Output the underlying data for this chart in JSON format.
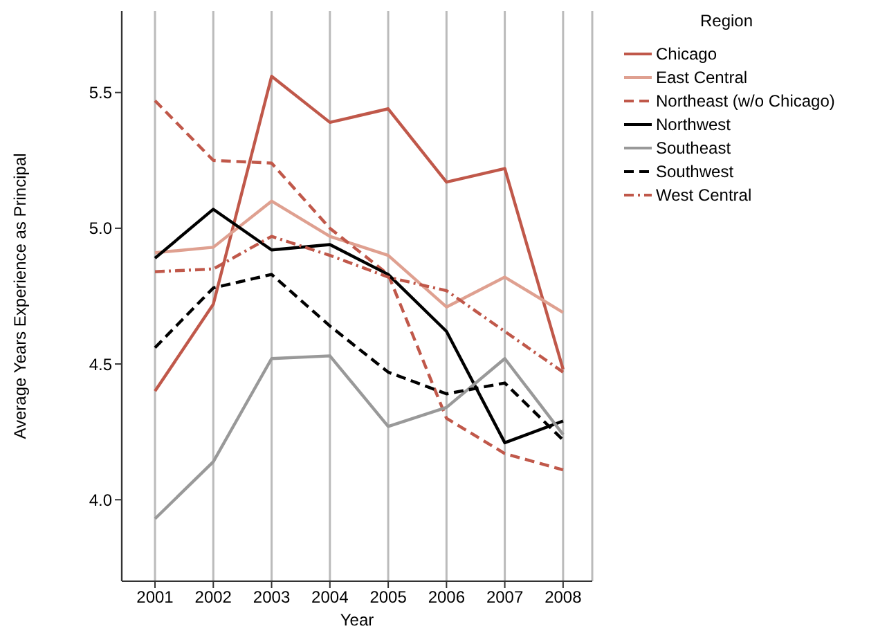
{
  "chart_data": {
    "type": "line",
    "xlabel": "Year",
    "ylabel": "Average Years Experience as Principal",
    "legend_title": "Region",
    "legend": "right",
    "grid": "x",
    "marker": "none",
    "categories": [
      "2001",
      "2002",
      "2003",
      "2004",
      "2005",
      "2006",
      "2007",
      "2008"
    ],
    "ylim": [
      3.7,
      5.8
    ],
    "yticks": [
      {
        "value": 4.0,
        "label": "4.0"
      },
      {
        "value": 4.5,
        "label": "4.5"
      },
      {
        "value": 5.0,
        "label": "5.0"
      },
      {
        "value": 5.5,
        "label": "5.5"
      }
    ],
    "series": [
      {
        "name": "Chicago",
        "color": "#c0584a",
        "line_style": "solid",
        "values": [
          4.4,
          4.72,
          5.56,
          5.39,
          5.44,
          5.17,
          5.22,
          4.48
        ]
      },
      {
        "name": "East Central",
        "color": "#dfa090",
        "line_style": "solid",
        "values": [
          4.91,
          4.93,
          5.1,
          4.97,
          4.9,
          4.71,
          4.82,
          4.69
        ]
      },
      {
        "name": "Northeast (w/o Chicago)",
        "color": "#c0584a",
        "line_style": "dashed",
        "values": [
          5.47,
          5.25,
          5.24,
          5.0,
          4.83,
          4.3,
          4.17,
          4.11
        ]
      },
      {
        "name": "Northwest",
        "color": "#000000",
        "line_style": "solid",
        "values": [
          4.89,
          5.07,
          4.92,
          4.94,
          4.83,
          4.62,
          4.21,
          4.29
        ]
      },
      {
        "name": "Southeast",
        "color": "#999999",
        "line_style": "solid",
        "values": [
          3.93,
          4.14,
          4.52,
          4.53,
          4.27,
          4.34,
          4.52,
          4.24
        ]
      },
      {
        "name": "Southwest",
        "color": "#000000",
        "line_style": "dashed",
        "values": [
          4.56,
          4.78,
          4.83,
          4.64,
          4.47,
          4.39,
          4.43,
          4.22
        ]
      },
      {
        "name": "West Central",
        "color": "#c0584a",
        "line_style": "dashdot",
        "values": [
          4.84,
          4.85,
          4.97,
          4.9,
          4.82,
          4.77,
          4.62,
          4.47
        ]
      }
    ]
  }
}
